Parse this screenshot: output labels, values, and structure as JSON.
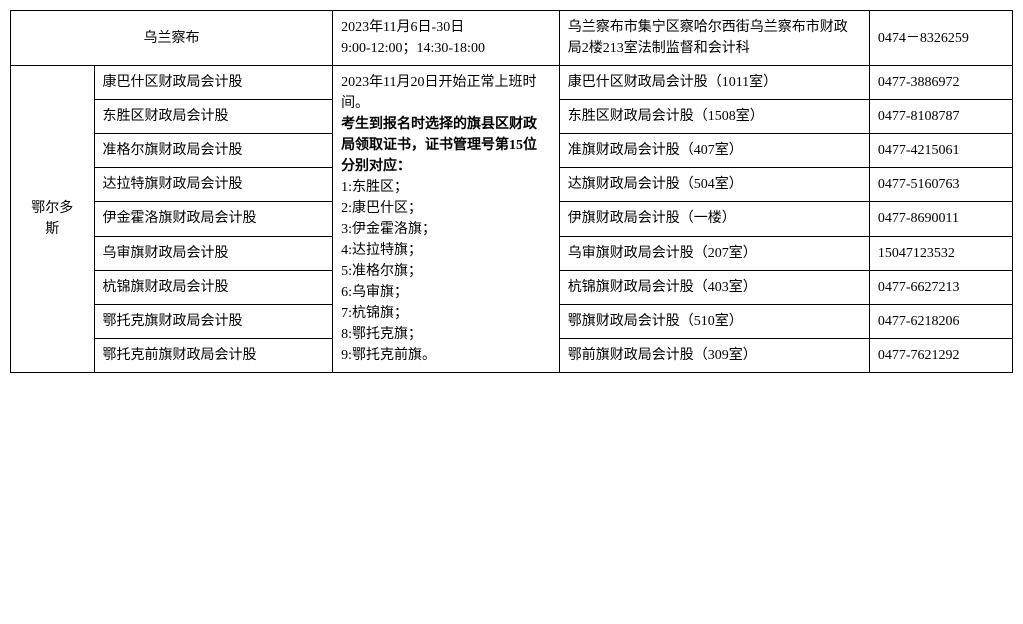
{
  "table": {
    "row_ulcb": {
      "city": "乌兰察布",
      "time": "2023年11月6日-30日\n9:00-12:00；14:30-18:00",
      "addr": "乌兰察布市集宁区察哈尔西街乌兰察布市财政局2楼213室法制监督和会计科",
      "phone": "0474－8326259"
    },
    "eeds": {
      "city": "鄂尔多\n斯",
      "time_lines": [
        "2023年11月20日开始正常上班时间。",
        "考生到报名时选择的旗县区财政局领取证书，证书管理号第15位分别对应：",
        "1:东胜区；",
        "2:康巴什区；",
        "3:伊金霍洛旗；",
        "4:达拉特旗；",
        "5:准格尔旗；",
        "6:乌审旗；",
        "7:杭锦旗；",
        "8:鄂托克旗；",
        "9:鄂托克前旗。"
      ],
      "rows": [
        {
          "dept": "康巴什区财政局会计股",
          "addr": "康巴什区财政局会计股（1011室）",
          "phone": "0477-3886972"
        },
        {
          "dept": "东胜区财政局会计股",
          "addr": "东胜区财政局会计股（1508室）",
          "phone": "0477-8108787"
        },
        {
          "dept": "准格尔旗财政局会计股",
          "addr": "准旗财政局会计股（407室）",
          "phone": "0477-4215061"
        },
        {
          "dept": "达拉特旗财政局会计股",
          "addr": "达旗财政局会计股（504室）",
          "phone": "0477-5160763"
        },
        {
          "dept": "伊金霍洛旗财政局会计股",
          "addr": "伊旗财政局会计股（一楼）",
          "phone": "0477-8690011"
        },
        {
          "dept": "乌审旗财政局会计股",
          "addr": "乌审旗财政局会计股（207室）",
          "phone": "15047123532"
        },
        {
          "dept": "杭锦旗财政局会计股",
          "addr": "杭锦旗财政局会计股（403室）",
          "phone": "0477-6627213"
        },
        {
          "dept": "鄂托克旗财政局会计股",
          "addr": "鄂旗财政局会计股（510室）",
          "phone": "0477-6218206"
        },
        {
          "dept": "鄂托克前旗财政局会计股",
          "addr": "鄂前旗财政局会计股（309室）",
          "phone": "0477-7621292"
        }
      ]
    }
  }
}
